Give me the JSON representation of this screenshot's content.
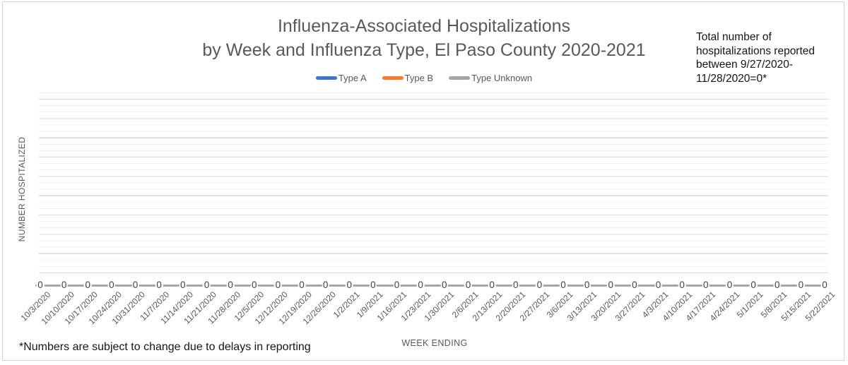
{
  "title": {
    "line1": "Influenza-Associated Hospitalizations",
    "line2": "by Week and Influenza Type, El Paso County 2020-2021"
  },
  "annotation": {
    "text": "Total number of\nhospitalizations reported\nbetween 9/27/2020-\n11/28/2020=0*"
  },
  "axes": {
    "x_title": "WEEK ENDING",
    "y_title": "NUMBER HOSPITALIZED"
  },
  "footnote": "*Numbers are subject to change due to delays in reporting",
  "colors": {
    "type_a": "#4472C4",
    "type_b": "#ED7D31",
    "type_unknown": "#A5A5A5",
    "text_gray": "#595959",
    "zero_line": "#A6A6A6"
  },
  "chart_data": {
    "type": "line",
    "title": "Influenza-Associated Hospitalizations by Week and Influenza Type, El Paso County 2020-2021",
    "xlabel": "WEEK ENDING",
    "ylabel": "NUMBER HOSPITALIZED",
    "legend_position": "top",
    "legend_entries": [
      "Type A",
      "Type B",
      "Type Unknown"
    ],
    "grid": "horizontal major and minor gridlines, no y tick labels visible",
    "y_tick_labels_visible": false,
    "data_labels_shown": true,
    "categories": [
      "10/3/2020",
      "10/10/2020",
      "10/17/2020",
      "10/24/2020",
      "10/31/2020",
      "11/7/2020",
      "11/14/2020",
      "11/21/2020",
      "11/28/2020",
      "12/5/2020",
      "12/12/2020",
      "12/19/2020",
      "12/26/2020",
      "1/2/2021",
      "1/9/2021",
      "1/16/2021",
      "1/23/2021",
      "1/30/2021",
      "2/6/2021",
      "2/13/2021",
      "2/20/2021",
      "2/27/2021",
      "3/6/2021",
      "3/13/2021",
      "3/20/2021",
      "3/27/2021",
      "4/3/2021",
      "4/10/2021",
      "4/17/2021",
      "4/24/2021",
      "5/1/2021",
      "5/8/2021",
      "5/15/2021",
      "5/22/2021"
    ],
    "series": [
      {
        "name": "Type A",
        "color": "#4472C4",
        "values": [
          0,
          0,
          0,
          0,
          0,
          0,
          0,
          0,
          0,
          0,
          0,
          0,
          0,
          0,
          0,
          0,
          0,
          0,
          0,
          0,
          0,
          0,
          0,
          0,
          0,
          0,
          0,
          0,
          0,
          0,
          0,
          0,
          0,
          0
        ]
      },
      {
        "name": "Type B",
        "color": "#ED7D31",
        "values": [
          0,
          0,
          0,
          0,
          0,
          0,
          0,
          0,
          0,
          0,
          0,
          0,
          0,
          0,
          0,
          0,
          0,
          0,
          0,
          0,
          0,
          0,
          0,
          0,
          0,
          0,
          0,
          0,
          0,
          0,
          0,
          0,
          0,
          0
        ]
      },
      {
        "name": "Type Unknown",
        "color": "#A5A5A5",
        "values": [
          0,
          0,
          0,
          0,
          0,
          0,
          0,
          0,
          0,
          0,
          0,
          0,
          0,
          0,
          0,
          0,
          0,
          0,
          0,
          0,
          0,
          0,
          0,
          0,
          0,
          0,
          0,
          0,
          0,
          0,
          0,
          0,
          0,
          0
        ]
      }
    ]
  }
}
